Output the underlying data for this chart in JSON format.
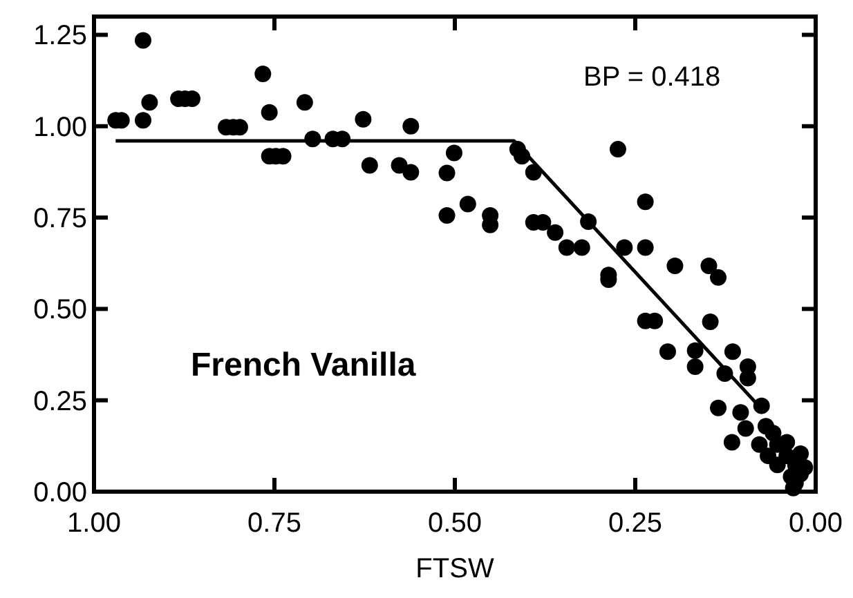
{
  "chart_data": {
    "type": "scatter",
    "xlabel": "FTSW",
    "annotations": [
      "BP = 0.418",
      "French Vanilla"
    ],
    "xlim": [
      1.0,
      0.0
    ],
    "ylim": [
      0.0,
      1.3
    ],
    "xticks": [
      {
        "value": 1,
        "label": "1.00"
      },
      {
        "value": 0.75,
        "label": "0.75"
      },
      {
        "value": 0.5,
        "label": "0.50"
      },
      {
        "value": 0.25,
        "label": "0.25"
      },
      {
        "value": 0,
        "label": "0.00"
      }
    ],
    "yticks": [
      {
        "value": 0,
        "label": "0.00"
      },
      {
        "value": 0.25,
        "label": "0.25"
      },
      {
        "value": 0.5,
        "label": "0.50"
      },
      {
        "value": 0.75,
        "label": "0.75"
      },
      {
        "value": 1,
        "label": "1.00"
      },
      {
        "value": 1.25,
        "label": "1.25"
      }
    ],
    "grid": false,
    "marker": "circle",
    "series": [
      {
        "color": "#000000",
        "x": [
          0.932,
          0.97,
          0.962,
          0.932,
          0.923,
          0.883,
          0.874,
          0.864,
          0.817,
          0.807,
          0.798,
          0.766,
          0.757,
          0.757,
          0.748,
          0.738,
          0.708,
          0.697,
          0.669,
          0.656,
          0.627,
          0.618,
          0.577,
          0.561,
          0.561,
          0.511,
          0.501,
          0.511,
          0.482,
          0.451,
          0.451,
          0.413,
          0.407,
          0.391,
          0.391,
          0.378,
          0.361,
          0.345,
          0.324,
          0.315,
          0.287,
          0.287,
          0.274,
          0.265,
          0.236,
          0.236,
          0.195,
          0.236,
          0.223,
          0.148,
          0.135,
          0.146,
          0.205,
          0.167,
          0.167,
          0.115,
          0.126,
          0.094,
          0.094,
          0.135,
          0.104,
          0.075,
          0.097,
          0.116,
          0.069,
          0.059,
          0.078,
          0.053,
          0.04,
          0.066,
          0.04,
          0.021,
          0.053,
          0.028,
          0.015,
          0.034,
          0.021,
          0.028,
          0.031
        ],
        "values": [
          1.235,
          1.016,
          1.016,
          1.016,
          1.065,
          1.075,
          1.075,
          1.075,
          0.997,
          0.997,
          0.997,
          1.143,
          1.038,
          0.918,
          0.918,
          0.918,
          1.065,
          0.965,
          0.965,
          0.965,
          1.019,
          0.893,
          0.893,
          0.874,
          1.0,
          0.872,
          0.927,
          0.756,
          0.787,
          0.756,
          0.73,
          0.937,
          0.918,
          0.874,
          0.737,
          0.737,
          0.709,
          0.668,
          0.668,
          0.739,
          0.593,
          0.58,
          0.937,
          0.668,
          0.793,
          0.668,
          0.618,
          0.467,
          0.467,
          0.618,
          0.586,
          0.465,
          0.383,
          0.386,
          0.342,
          0.383,
          0.323,
          0.342,
          0.311,
          0.229,
          0.217,
          0.235,
          0.173,
          0.135,
          0.179,
          0.16,
          0.129,
          0.129,
          0.135,
          0.098,
          0.098,
          0.104,
          0.073,
          0.073,
          0.066,
          0.041,
          0.048,
          0.023,
          0.01
        ]
      },
      {
        "type": "line",
        "color": "#000000",
        "marker": "none",
        "x": [
          0.97,
          0.418,
          0.072
        ],
        "values": [
          0.96,
          0.96,
          0.22
        ]
      }
    ]
  }
}
